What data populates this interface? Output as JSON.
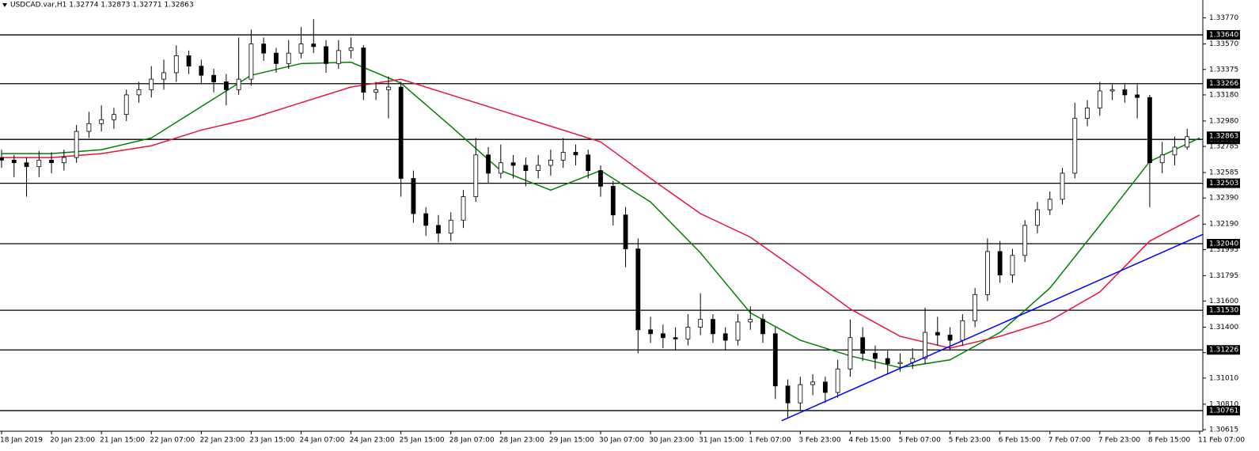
{
  "chart_data": {
    "type": "candlestick",
    "header": "USDCAD.var,H1  1.32774 1.32873 1.32771 1.32863",
    "ylim": [
      1.30603,
      1.33907
    ],
    "yticks": [
      {
        "value": 1.3377,
        "label": "1.33770"
      },
      {
        "value": 1.3357,
        "label": "1.33570"
      },
      {
        "value": 1.33375,
        "label": "1.33375"
      },
      {
        "value": 1.3318,
        "label": "1.33180"
      },
      {
        "value": 1.3298,
        "label": "1.32980"
      },
      {
        "value": 1.32785,
        "label": "1.32785"
      },
      {
        "value": 1.32585,
        "label": "1.32585"
      },
      {
        "value": 1.3239,
        "label": "1.32390"
      },
      {
        "value": 1.3219,
        "label": "1.32190"
      },
      {
        "value": 1.31995,
        "label": "1.31995"
      },
      {
        "value": 1.31795,
        "label": "1.31795"
      },
      {
        "value": 1.316,
        "label": "1.31600"
      },
      {
        "value": 1.314,
        "label": "1.31400"
      },
      {
        "value": 1.31205,
        "label": "1.31205"
      },
      {
        "value": 1.3101,
        "label": "1.31010"
      },
      {
        "value": 1.3081,
        "label": "1.30810"
      },
      {
        "value": 1.30615,
        "label": "1.30615"
      }
    ],
    "levels": [
      {
        "value": 1.3364,
        "label": "1.33640"
      },
      {
        "value": 1.33266,
        "label": "1.33266"
      },
      {
        "value": 1.32839,
        "label": "1.32839"
      },
      {
        "value": 1.32503,
        "label": "1.32503"
      },
      {
        "value": 1.3204,
        "label": "1.32040"
      },
      {
        "value": 1.3153,
        "label": "1.31530"
      },
      {
        "value": 1.31226,
        "label": "1.31226"
      },
      {
        "value": 1.30761,
        "label": "1.30761"
      }
    ],
    "current_price": {
      "value": 1.32863,
      "label": "1.32863"
    },
    "x_labels": [
      "18 Jan 2019",
      "20 Jan 23:00",
      "21 Jan 15:00",
      "22 Jan 07:00",
      "22 Jan 23:00",
      "23 Jan 15:00",
      "24 Jan 07:00",
      "24 Jan 23:00",
      "25 Jan 15:00",
      "28 Jan 07:00",
      "28 Jan 23:00",
      "29 Jan 15:00",
      "30 Jan 07:00",
      "30 Jan 23:00",
      "31 Jan 15:00",
      "1 Feb 07:00",
      "3 Feb 23:00",
      "4 Feb 15:00",
      "5 Feb 07:00",
      "5 Feb 23:00",
      "6 Feb 15:00",
      "7 Feb 07:00",
      "7 Feb 23:00",
      "8 Feb 15:00",
      "11 Feb 07:00"
    ],
    "ohlc": [
      [
        1.327,
        1.3276,
        1.3262,
        1.3268
      ],
      [
        1.3268,
        1.3272,
        1.3255,
        1.3266
      ],
      [
        1.3266,
        1.327,
        1.324,
        1.3263
      ],
      [
        1.3263,
        1.3275,
        1.3255,
        1.3268
      ],
      [
        1.3268,
        1.3274,
        1.3258,
        1.3266
      ],
      [
        1.3266,
        1.3276,
        1.326,
        1.327
      ],
      [
        1.327,
        1.3295,
        1.3266,
        1.329
      ],
      [
        1.329,
        1.3305,
        1.3285,
        1.3296
      ],
      [
        1.3296,
        1.331,
        1.329,
        1.3299
      ],
      [
        1.3299,
        1.3308,
        1.3292,
        1.3303
      ],
      [
        1.3303,
        1.3322,
        1.3298,
        1.3318
      ],
      [
        1.3318,
        1.3328,
        1.3312,
        1.3322
      ],
      [
        1.3322,
        1.334,
        1.3316,
        1.333
      ],
      [
        1.333,
        1.3345,
        1.3322,
        1.3335
      ],
      [
        1.3335,
        1.3356,
        1.3328,
        1.3348
      ],
      [
        1.3348,
        1.3352,
        1.3334,
        1.334
      ],
      [
        1.334,
        1.3345,
        1.3326,
        1.3333
      ],
      [
        1.3333,
        1.3338,
        1.332,
        1.3328
      ],
      [
        1.3328,
        1.3334,
        1.331,
        1.3322
      ],
      [
        1.3322,
        1.3362,
        1.3318,
        1.333
      ],
      [
        1.333,
        1.3368,
        1.3325,
        1.3357
      ],
      [
        1.3357,
        1.3362,
        1.3344,
        1.335
      ],
      [
        1.335,
        1.3354,
        1.3335,
        1.3342
      ],
      [
        1.3342,
        1.336,
        1.3338,
        1.335
      ],
      [
        1.335,
        1.337,
        1.3346,
        1.3357
      ],
      [
        1.3357,
        1.3376,
        1.335,
        1.3355
      ],
      [
        1.3355,
        1.336,
        1.3335,
        1.3342
      ],
      [
        1.3342,
        1.336,
        1.3338,
        1.3352
      ],
      [
        1.3352,
        1.3362,
        1.3346,
        1.3354
      ],
      [
        1.3354,
        1.3356,
        1.3314,
        1.332
      ],
      [
        1.332,
        1.3328,
        1.3314,
        1.3322
      ],
      [
        1.3322,
        1.3332,
        1.33,
        1.3324
      ],
      [
        1.3324,
        1.3328,
        1.324,
        1.3254
      ],
      [
        1.3254,
        1.326,
        1.322,
        1.3227
      ],
      [
        1.3227,
        1.3232,
        1.321,
        1.3218
      ],
      [
        1.3218,
        1.3226,
        1.3205,
        1.3212
      ],
      [
        1.3212,
        1.3228,
        1.3206,
        1.3222
      ],
      [
        1.3222,
        1.3245,
        1.3216,
        1.324
      ],
      [
        1.324,
        1.3285,
        1.3236,
        1.3272
      ],
      [
        1.3272,
        1.3278,
        1.325,
        1.3258
      ],
      [
        1.3258,
        1.328,
        1.3254,
        1.3266
      ],
      [
        1.3266,
        1.3272,
        1.3254,
        1.3264
      ],
      [
        1.3264,
        1.327,
        1.3248,
        1.326
      ],
      [
        1.326,
        1.3272,
        1.3254,
        1.3264
      ],
      [
        1.3264,
        1.3276,
        1.3256,
        1.3268
      ],
      [
        1.3268,
        1.3285,
        1.3262,
        1.3274
      ],
      [
        1.3274,
        1.328,
        1.3264,
        1.3272
      ],
      [
        1.3272,
        1.3276,
        1.3254,
        1.326
      ],
      [
        1.326,
        1.3264,
        1.324,
        1.3248
      ],
      [
        1.3248,
        1.3252,
        1.3218,
        1.3226
      ],
      [
        1.3226,
        1.3232,
        1.3186,
        1.32
      ],
      [
        1.32,
        1.3208,
        1.312,
        1.3138
      ],
      [
        1.3138,
        1.3148,
        1.3128,
        1.3135
      ],
      [
        1.3135,
        1.3142,
        1.3124,
        1.3132
      ],
      [
        1.3132,
        1.314,
        1.3122,
        1.3131
      ],
      [
        1.3131,
        1.315,
        1.3126,
        1.314
      ],
      [
        1.314,
        1.3166,
        1.3134,
        1.3146
      ],
      [
        1.3146,
        1.315,
        1.3128,
        1.3135
      ],
      [
        1.3135,
        1.314,
        1.3122,
        1.313
      ],
      [
        1.313,
        1.315,
        1.3126,
        1.3144
      ],
      [
        1.3144,
        1.3156,
        1.3138,
        1.3146
      ],
      [
        1.3146,
        1.315,
        1.3128,
        1.3135
      ],
      [
        1.3135,
        1.314,
        1.3085,
        1.3095
      ],
      [
        1.3095,
        1.31,
        1.307,
        1.3082
      ],
      [
        1.3082,
        1.3102,
        1.3076,
        1.3096
      ],
      [
        1.3096,
        1.3104,
        1.3088,
        1.3098
      ],
      [
        1.3098,
        1.3102,
        1.3082,
        1.309
      ],
      [
        1.309,
        1.3115,
        1.3086,
        1.3108
      ],
      [
        1.3108,
        1.3146,
        1.3102,
        1.3132
      ],
      [
        1.3132,
        1.314,
        1.3114,
        1.312
      ],
      [
        1.312,
        1.3126,
        1.3108,
        1.3116
      ],
      [
        1.3116,
        1.3122,
        1.3104,
        1.3112
      ],
      [
        1.3112,
        1.312,
        1.3106,
        1.3113
      ],
      [
        1.3113,
        1.3124,
        1.3108,
        1.3116
      ],
      [
        1.3116,
        1.3155,
        1.3112,
        1.3136
      ],
      [
        1.3136,
        1.3148,
        1.3126,
        1.3134
      ],
      [
        1.3134,
        1.314,
        1.3122,
        1.313
      ],
      [
        1.313,
        1.315,
        1.3126,
        1.3145
      ],
      [
        1.3145,
        1.317,
        1.314,
        1.3165
      ],
      [
        1.3165,
        1.3208,
        1.316,
        1.3198
      ],
      [
        1.3198,
        1.3206,
        1.3174,
        1.318
      ],
      [
        1.318,
        1.32,
        1.3174,
        1.3195
      ],
      [
        1.3195,
        1.3222,
        1.319,
        1.3218
      ],
      [
        1.3218,
        1.3236,
        1.3212,
        1.323
      ],
      [
        1.323,
        1.3244,
        1.3226,
        1.3238
      ],
      [
        1.3238,
        1.3262,
        1.3234,
        1.3258
      ],
      [
        1.3258,
        1.3312,
        1.3254,
        1.33
      ],
      [
        1.33,
        1.3314,
        1.3294,
        1.3308
      ],
      [
        1.3308,
        1.3328,
        1.3302,
        1.3321
      ],
      [
        1.3321,
        1.3326,
        1.3314,
        1.3322
      ],
      [
        1.3322,
        1.3326,
        1.3312,
        1.3318
      ],
      [
        1.3318,
        1.3326,
        1.33,
        1.3316
      ],
      [
        1.3316,
        1.3318,
        1.3232,
        1.3266
      ],
      [
        1.3266,
        1.3282,
        1.3258,
        1.3272
      ],
      [
        1.3272,
        1.3286,
        1.3264,
        1.3278
      ],
      [
        1.3278,
        1.3292,
        1.3276,
        1.3286
      ]
    ],
    "series": [
      {
        "color": "#008000",
        "values": [
          1.3273,
          1.3273,
          1.3276,
          1.3285,
          1.3309,
          1.3333,
          1.3342,
          1.3343,
          1.3327,
          1.3294,
          1.326,
          1.3245,
          1.326,
          1.3236,
          1.3197,
          1.3151,
          1.313,
          1.3118,
          1.3109,
          1.3115,
          1.3136,
          1.317,
          1.3218,
          1.3267,
          1.3285
        ]
      },
      {
        "color": "#e8143c",
        "values": [
          1.327,
          1.327,
          1.3273,
          1.3279,
          1.3291,
          1.33,
          1.3312,
          1.3324,
          1.333,
          1.3318,
          1.3306,
          1.3294,
          1.3282,
          1.3254,
          1.3227,
          1.3209,
          1.3182,
          1.3154,
          1.3133,
          1.3124,
          1.3133,
          1.3145,
          1.3167,
          1.3206,
          1.3226
        ]
      }
    ],
    "trendline": {
      "color": "#0000ff",
      "x": [
        62.5,
        96.3
      ],
      "values": [
        1.30683,
        1.32113
      ]
    }
  }
}
